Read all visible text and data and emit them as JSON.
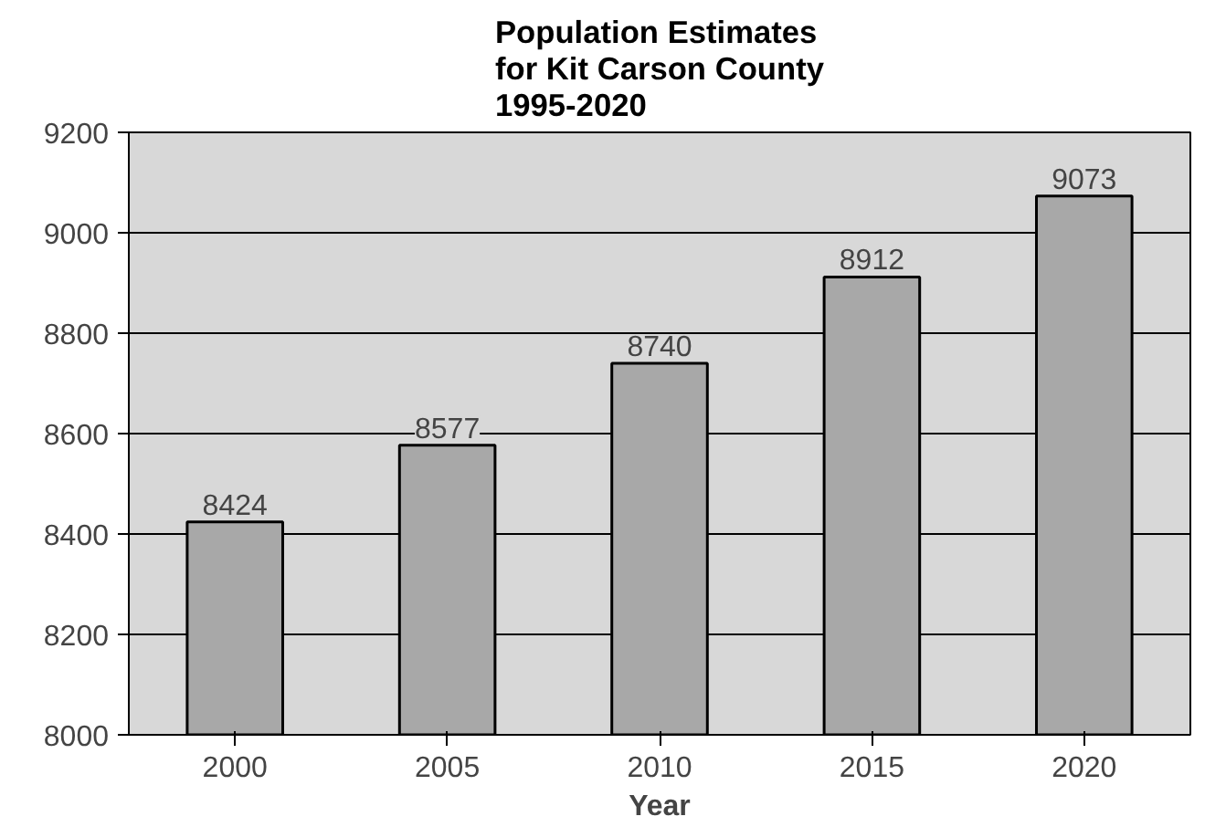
{
  "chart_data": {
    "type": "bar",
    "title": "Population Estimates\nfor Kit Carson County\n1995-2020",
    "xlabel": "Year",
    "categories": [
      "2000",
      "2005",
      "2010",
      "2015",
      "2020"
    ],
    "values": [
      8424,
      8577,
      8740,
      8912,
      9073
    ],
    "color": "#a8a8a8",
    "ylim": [
      8000,
      9200
    ],
    "yticks": [
      8000,
      8200,
      8400,
      8600,
      8800,
      9000,
      9200
    ],
    "grid": "y",
    "data_labels": true
  }
}
